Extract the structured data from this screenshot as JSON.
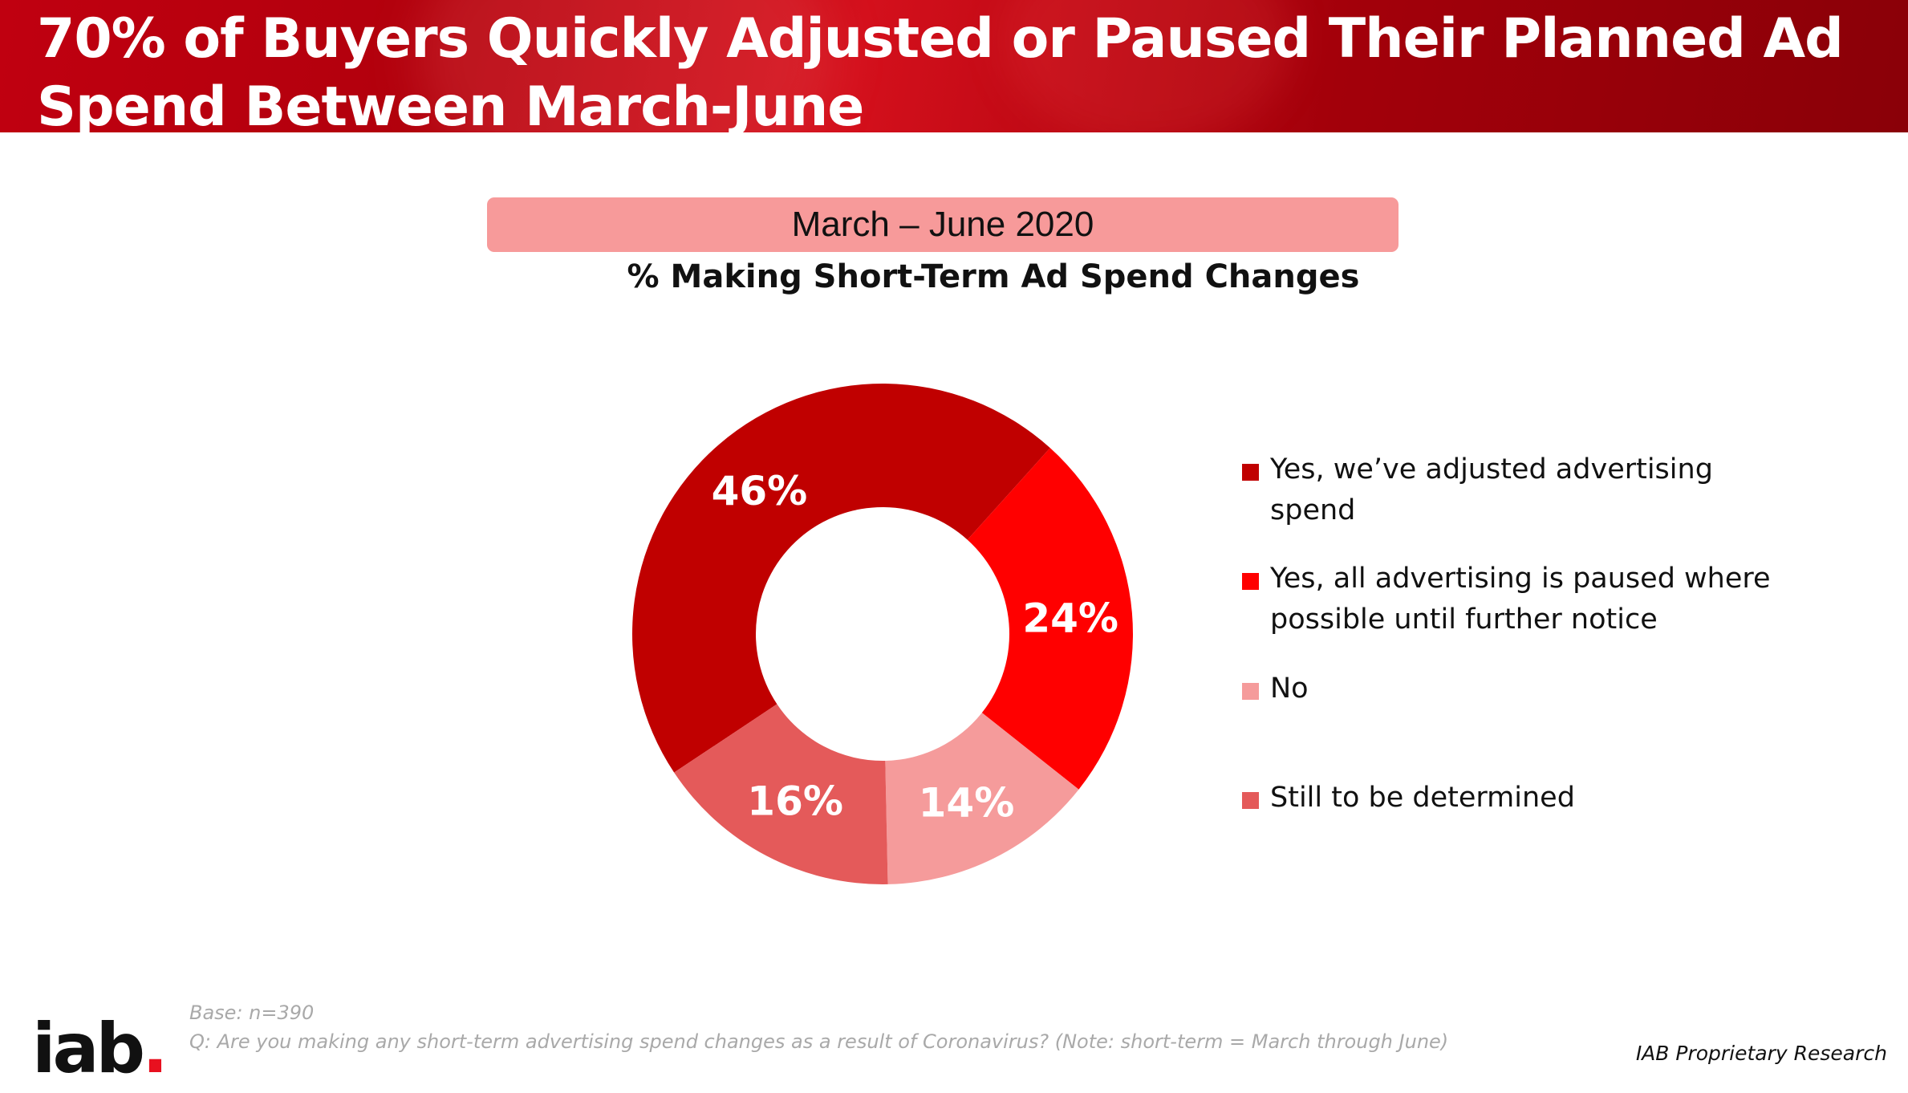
{
  "header": {
    "title": "70% of Buyers Quickly Adjusted or Paused Their Planned Ad Spend Between March-June"
  },
  "period": "March – June 2020",
  "chart_data": {
    "type": "pie",
    "donut": true,
    "title": "% Making Short-Term Ad Spend Changes",
    "legend_position": "right",
    "slices": [
      {
        "name": "Yes, we’ve adjusted advertising spend",
        "value": 46,
        "label": "46%",
        "color": "#c00000"
      },
      {
        "name": "Yes, all advertising is paused where possible until further notice",
        "value": 24,
        "label": "24%",
        "color": "#ff0000"
      },
      {
        "name": "No",
        "value": 14,
        "label": "14%",
        "color": "#f59b9b"
      },
      {
        "name": "Still to be determined",
        "value": 16,
        "label": "16%",
        "color": "#e45a5a"
      }
    ]
  },
  "footer": {
    "base": "Base: n=390",
    "question": "Q: Are you making any short-term advertising spend changes as a result of Coronavirus? (Note: short-term = March through June)",
    "proprietary": "IAB Proprietary Research",
    "logo_text": "iab",
    "logo_dot": "."
  }
}
